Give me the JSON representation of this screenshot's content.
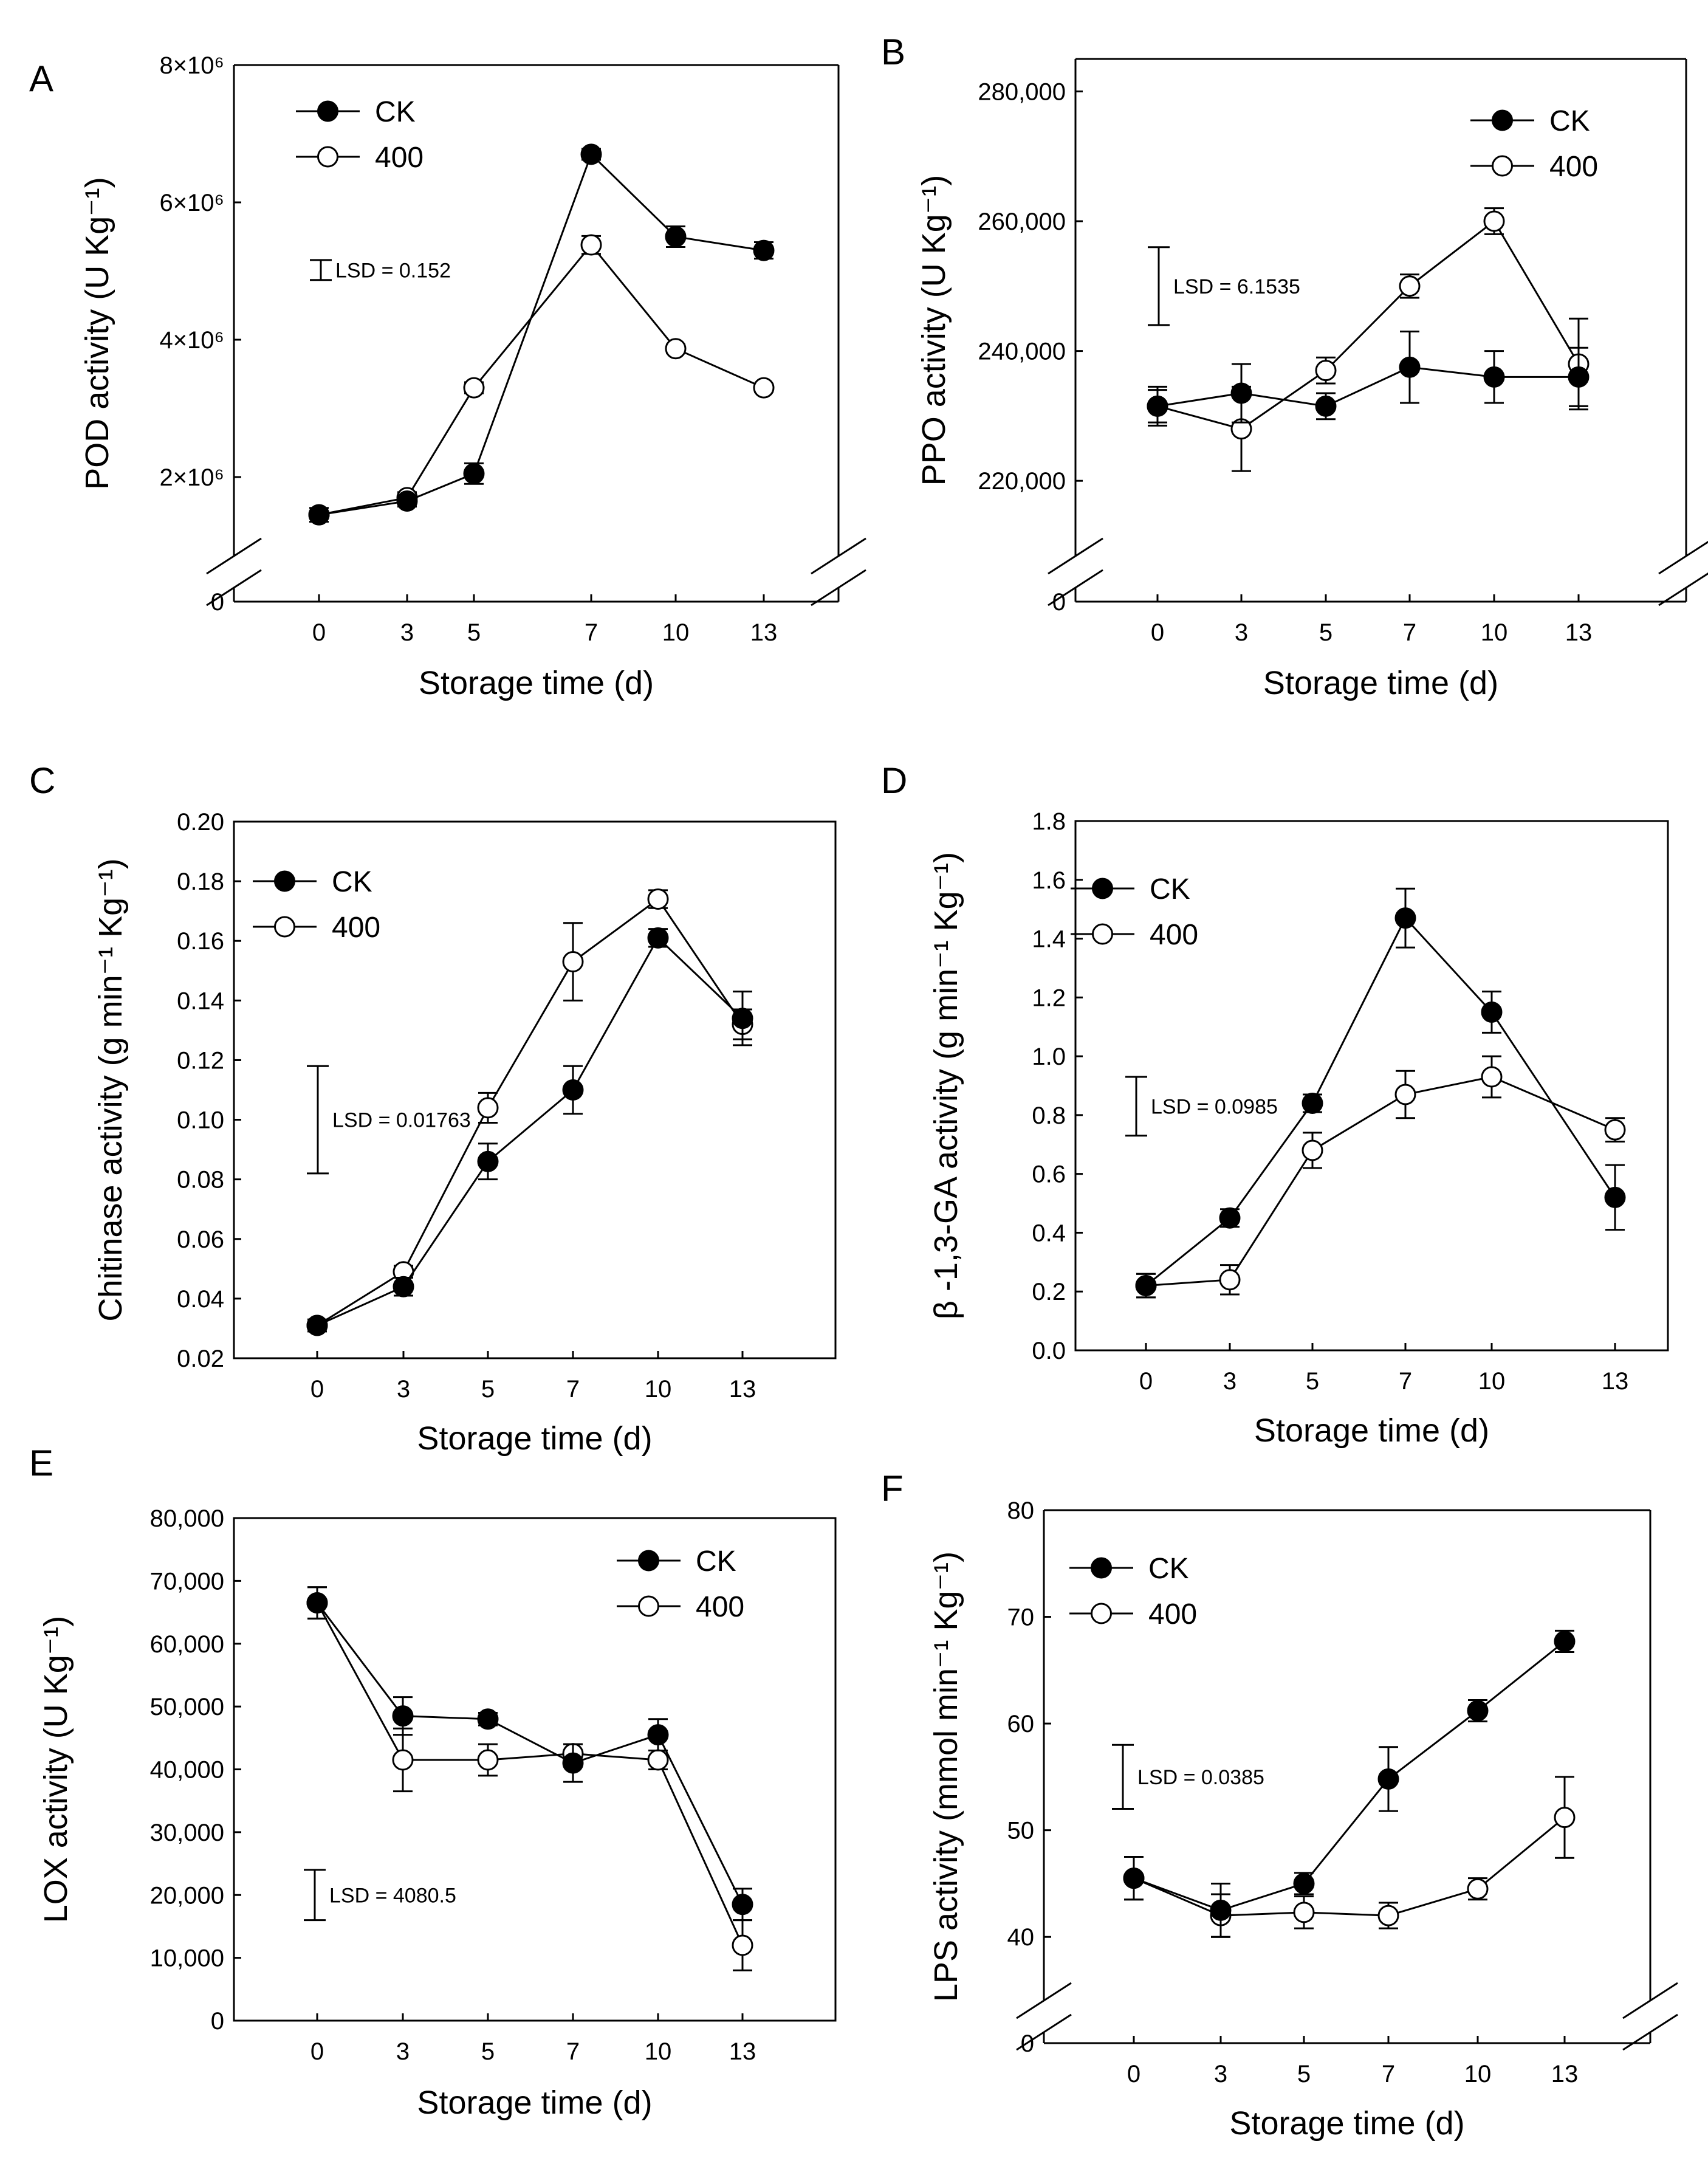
{
  "figure": {
    "xlabel": "Storage time (d)"
  },
  "chart_data": [
    {
      "panel": "A",
      "type": "line",
      "title": "",
      "xlabel": "Storage time (d)",
      "ylabel": "POD activity (U Kg⁻¹)",
      "x": [
        0,
        3,
        5,
        7,
        10,
        13
      ],
      "categories": [
        "0",
        "3",
        "5",
        "7",
        "10",
        "13"
      ],
      "ylim": [
        0,
        8000000
      ],
      "axis_break": true,
      "yticks": [
        {
          "value": 0,
          "label": "0"
        },
        {
          "value": 2000000,
          "label": "2×10⁶"
        },
        {
          "value": 4000000,
          "label": "4×10⁶"
        },
        {
          "value": 6000000,
          "label": "6×10⁶"
        },
        {
          "value": 8000000,
          "label": "8×10⁶"
        }
      ],
      "legend_position": "top-left",
      "series": [
        {
          "name": "CK",
          "marker": "filled",
          "values": [
            1450000,
            1650000,
            2050000,
            6700000,
            5500000,
            5300000
          ],
          "errors": [
            100000,
            80000,
            150000,
            80000,
            150000,
            120000
          ]
        },
        {
          "name": "400",
          "marker": "open",
          "values": [
            1450000,
            1700000,
            3300000,
            5380000,
            3870000,
            3300000
          ],
          "errors": [
            100000,
            80000,
            80000,
            130000,
            60000,
            60000
          ]
        }
      ],
      "lsd": {
        "label": "LSD = 0.152",
        "y_low": 4870000,
        "y_high": 5160000
      }
    },
    {
      "panel": "B",
      "type": "line",
      "title": "",
      "xlabel": "Storage time (d)",
      "ylabel": "PPO activity (U Kg⁻¹)",
      "x": [
        0,
        3,
        5,
        7,
        10,
        13
      ],
      "categories": [
        "0",
        "3",
        "5",
        "7",
        "10",
        "13"
      ],
      "ylim": [
        0,
        285000
      ],
      "axis_break": true,
      "yticks": [
        {
          "value": 0,
          "label": "0"
        },
        {
          "value": 220000,
          "label": "220,000"
        },
        {
          "value": 240000,
          "label": "240,000"
        },
        {
          "value": 260000,
          "label": "260,000"
        },
        {
          "value": 280000,
          "label": "280,000"
        }
      ],
      "legend_position": "top-right",
      "series": [
        {
          "name": "CK",
          "marker": "filled",
          "values": [
            231500,
            233500,
            231500,
            237500,
            236000,
            236000
          ],
          "errors": [
            2500,
            4500,
            2000,
            5500,
            4000,
            4500
          ]
        },
        {
          "name": "400",
          "marker": "open",
          "values": [
            231500,
            228000,
            237000,
            250000,
            260000,
            238000
          ],
          "errors": [
            3000,
            6500,
            2000,
            1800,
            2000,
            7000
          ]
        }
      ],
      "lsd": {
        "label": "LSD = 6.1535",
        "y_low": 244000,
        "y_high": 256000
      }
    },
    {
      "panel": "C",
      "type": "line",
      "title": "",
      "xlabel": "Storage time (d)",
      "ylabel": "Chitinase activity (g min⁻¹ Kg⁻¹)",
      "x": [
        0,
        3,
        5,
        7,
        10,
        13
      ],
      "categories": [
        "0",
        "3",
        "5",
        "7",
        "10",
        "13"
      ],
      "ylim": [
        0.02,
        0.2
      ],
      "axis_break": false,
      "yticks": [
        {
          "value": 0.02,
          "label": "0.02"
        },
        {
          "value": 0.04,
          "label": "0.04"
        },
        {
          "value": 0.06,
          "label": "0.06"
        },
        {
          "value": 0.08,
          "label": "0.08"
        },
        {
          "value": 0.1,
          "label": "0.10"
        },
        {
          "value": 0.12,
          "label": "0.12"
        },
        {
          "value": 0.14,
          "label": "0.14"
        },
        {
          "value": 0.16,
          "label": "0.16"
        },
        {
          "value": 0.18,
          "label": "0.18"
        },
        {
          "value": 0.2,
          "label": "0.20"
        }
      ],
      "legend_position": "top-left",
      "series": [
        {
          "name": "CK",
          "marker": "filled",
          "values": [
            0.031,
            0.044,
            0.086,
            0.11,
            0.161,
            0.134
          ],
          "errors": [
            0.002,
            0.003,
            0.006,
            0.008,
            0.003,
            0.009
          ]
        },
        {
          "name": "400",
          "marker": "open",
          "values": [
            0.031,
            0.049,
            0.104,
            0.153,
            0.174,
            0.132
          ],
          "errors": [
            0.002,
            0.002,
            0.005,
            0.013,
            0.003,
            0.005
          ]
        }
      ],
      "lsd": {
        "label": "LSD = 0.01763",
        "y_low": 0.082,
        "y_high": 0.118
      }
    },
    {
      "panel": "D",
      "type": "line",
      "title": "",
      "xlabel": "Storage time (d)",
      "ylabel": "β -1,3-GA activity (g min⁻¹ Kg⁻¹)",
      "x": [
        0,
        3,
        5,
        7,
        10,
        13
      ],
      "categories": [
        "0",
        "3",
        "5",
        "7",
        "10",
        "13"
      ],
      "ylim": [
        0,
        1.8
      ],
      "axis_break": false,
      "yticks": [
        {
          "value": 0.0,
          "label": "0.0"
        },
        {
          "value": 0.2,
          "label": "0.2"
        },
        {
          "value": 0.4,
          "label": "0.4"
        },
        {
          "value": 0.6,
          "label": "0.6"
        },
        {
          "value": 0.8,
          "label": "0.8"
        },
        {
          "value": 1.0,
          "label": "1.0"
        },
        {
          "value": 1.2,
          "label": "1.2"
        },
        {
          "value": 1.4,
          "label": "1.4"
        },
        {
          "value": 1.6,
          "label": "1.6"
        },
        {
          "value": 1.8,
          "label": "1.8"
        }
      ],
      "legend_position": "top-left",
      "series": [
        {
          "name": "CK",
          "marker": "filled",
          "values": [
            0.22,
            0.45,
            0.84,
            1.47,
            1.15,
            0.52
          ],
          "errors": [
            0.04,
            0.03,
            0.03,
            0.1,
            0.07,
            0.11
          ]
        },
        {
          "name": "400",
          "marker": "open",
          "values": [
            0.22,
            0.24,
            0.68,
            0.87,
            0.93,
            0.75
          ],
          "errors": [
            0.04,
            0.05,
            0.06,
            0.08,
            0.07,
            0.04
          ]
        }
      ],
      "lsd": {
        "label": "LSD = 0.0985",
        "y_low": 0.73,
        "y_high": 0.93
      }
    },
    {
      "panel": "E",
      "type": "line",
      "title": "",
      "xlabel": "Storage time (d)",
      "ylabel": "LOX activity (U Kg⁻¹)",
      "x": [
        0,
        3,
        5,
        7,
        10,
        13
      ],
      "categories": [
        "0",
        "3",
        "5",
        "7",
        "10",
        "13"
      ],
      "ylim": [
        0,
        80000
      ],
      "axis_break": false,
      "yticks": [
        {
          "value": 0,
          "label": "0"
        },
        {
          "value": 10000,
          "label": "10,000"
        },
        {
          "value": 20000,
          "label": "20,000"
        },
        {
          "value": 30000,
          "label": "30,000"
        },
        {
          "value": 40000,
          "label": "40,000"
        },
        {
          "value": 50000,
          "label": "50,000"
        },
        {
          "value": 60000,
          "label": "60,000"
        },
        {
          "value": 70000,
          "label": "70,000"
        },
        {
          "value": 80000,
          "label": "80,000"
        }
      ],
      "legend_position": "top-right",
      "series": [
        {
          "name": "CK",
          "marker": "filled",
          "values": [
            66500,
            48500,
            48000,
            41000,
            45500,
            18500
          ],
          "errors": [
            2500,
            3000,
            1000,
            3000,
            2500,
            2500
          ]
        },
        {
          "name": "400",
          "marker": "open",
          "values": [
            66500,
            41500,
            41500,
            42500,
            41500,
            12000
          ],
          "errors": [
            2500,
            5000,
            2500,
            1500,
            1500,
            4000
          ]
        }
      ],
      "lsd": {
        "label": "LSD = 4080.5",
        "y_low": 16000,
        "y_high": 24000
      }
    },
    {
      "panel": "F",
      "type": "line",
      "title": "",
      "xlabel": "Storage time (d)",
      "ylabel": "LPS activity (mmol min⁻¹ Kg⁻¹)",
      "x": [
        0,
        3,
        5,
        7,
        10,
        13
      ],
      "categories": [
        "0",
        "3",
        "5",
        "7",
        "10",
        "13"
      ],
      "ylim": [
        0,
        80
      ],
      "axis_break": true,
      "yticks": [
        {
          "value": 0,
          "label": "0"
        },
        {
          "value": 40,
          "label": "40"
        },
        {
          "value": 50,
          "label": "50"
        },
        {
          "value": 60,
          "label": "60"
        },
        {
          "value": 70,
          "label": "70"
        },
        {
          "value": 80,
          "label": "80"
        }
      ],
      "legend_position": "top-left",
      "series": [
        {
          "name": "CK",
          "marker": "filled",
          "values": [
            45.5,
            42.5,
            45,
            54.8,
            61.2,
            67.7
          ],
          "errors": [
            2,
            2.5,
            1,
            3,
            1,
            1
          ]
        },
        {
          "name": "400",
          "marker": "open",
          "values": [
            45.5,
            42,
            42.3,
            42,
            44.5,
            51.2
          ],
          "errors": [
            2,
            2,
            1.5,
            1.2,
            1,
            3.8
          ]
        }
      ],
      "lsd": {
        "label": "LSD = 0.0385",
        "y_low": 52,
        "y_high": 58
      }
    }
  ]
}
